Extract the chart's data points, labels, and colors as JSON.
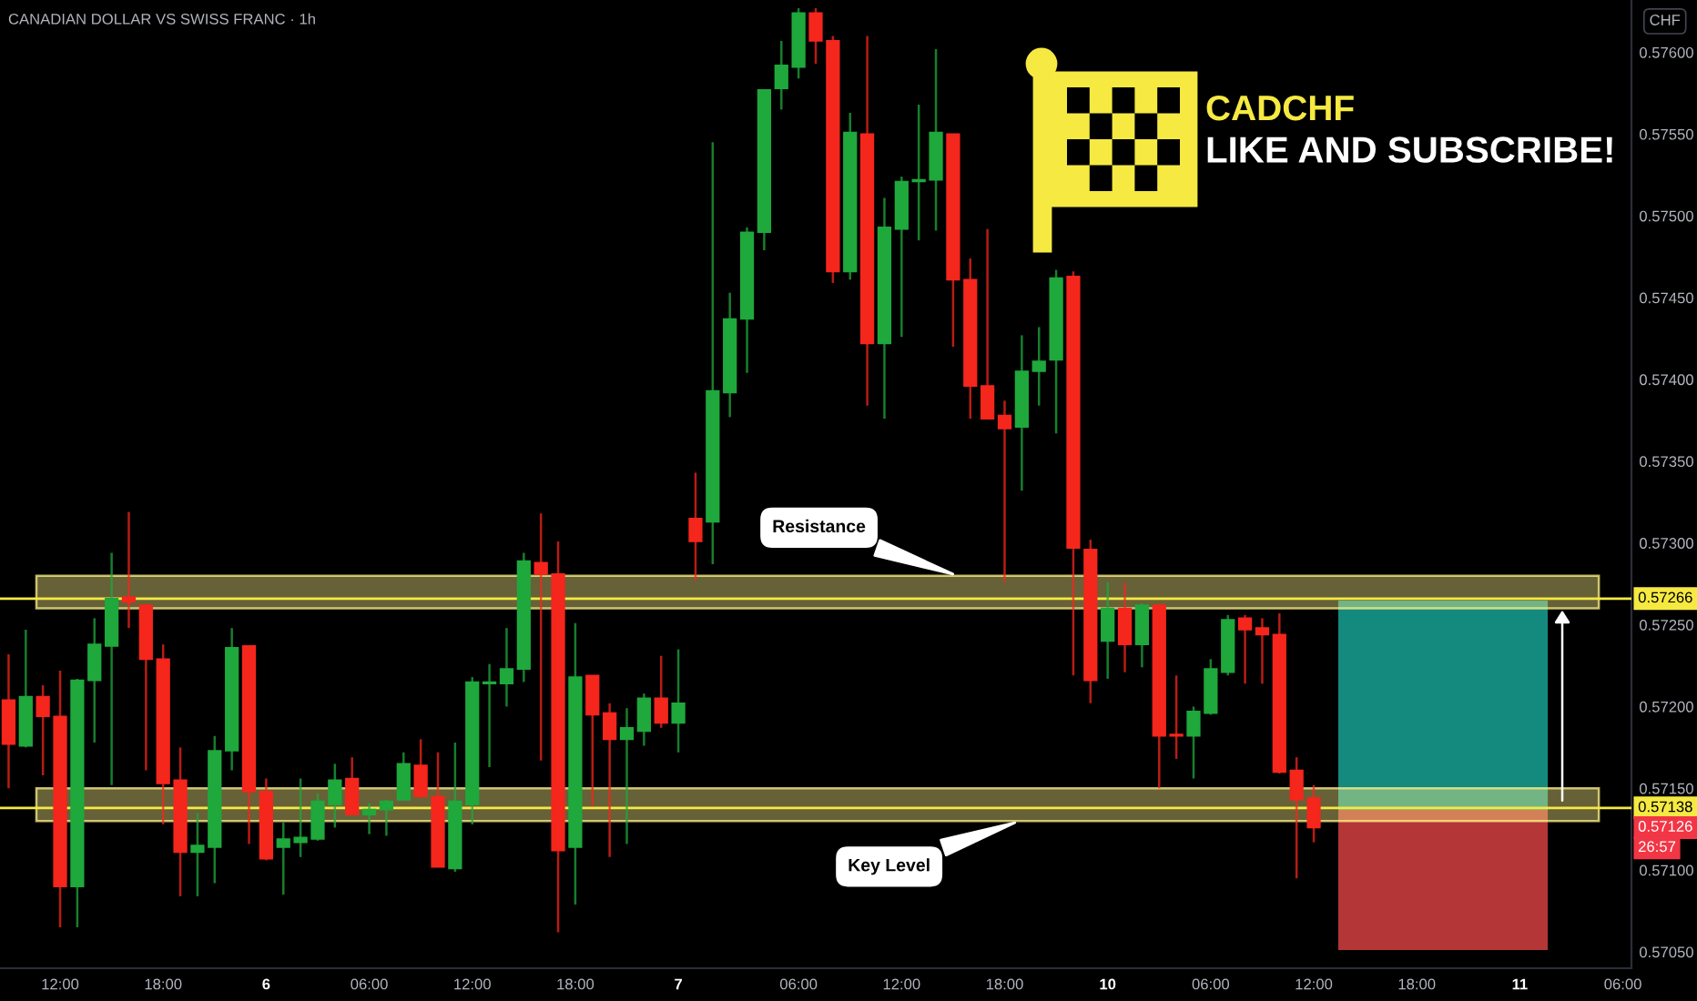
{
  "chart_data": {
    "type": "candlestick",
    "title": "CANADIAN DOLLAR VS SWISS FRANC · 1h",
    "ylabel": "CHF",
    "categories": [
      null,
      null,
      null,
      "12:00",
      null,
      null,
      null,
      null,
      null,
      "18:00",
      null,
      null,
      null,
      null,
      null,
      "6",
      null,
      null,
      null,
      null,
      null,
      "06:00",
      null,
      null,
      null,
      null,
      null,
      "12:00",
      null,
      null,
      null,
      null,
      null,
      "18:00",
      null,
      null,
      null,
      null,
      null,
      "7",
      null,
      null,
      null,
      null,
      null,
      null,
      "06:00",
      null,
      null,
      null,
      null,
      null,
      "12:00",
      null,
      null,
      null,
      null,
      null,
      "18:00",
      null,
      null,
      null,
      null,
      null,
      "10",
      null,
      null,
      null,
      null,
      null,
      "06:00",
      null,
      null,
      null,
      null,
      null,
      "12:00",
      null,
      null,
      null,
      null,
      null,
      "18:00",
      null,
      null,
      null,
      null,
      null,
      "11",
      null,
      null,
      null,
      null,
      null,
      "06:00"
    ],
    "ohlc": [
      [
        0.57204,
        0.57232,
        0.5715,
        0.57177
      ],
      [
        0.57176,
        0.57247,
        0.57175,
        0.57206
      ],
      [
        0.57206,
        0.57213,
        0.57158,
        0.57194
      ],
      [
        0.57194,
        0.57222,
        0.57065,
        0.5709
      ],
      [
        0.5709,
        0.57217,
        0.57065,
        0.57216
      ],
      [
        0.57216,
        0.57254,
        0.57178,
        0.57238
      ],
      [
        0.57237,
        0.57294,
        0.57152,
        0.57266
      ],
      [
        0.57267,
        0.57319,
        0.57248,
        0.57264
      ],
      [
        0.57262,
        0.57263,
        0.57161,
        0.57229
      ],
      [
        0.57229,
        0.57238,
        0.57128,
        0.57153
      ],
      [
        0.57155,
        0.57175,
        0.57084,
        0.57111
      ],
      [
        0.57111,
        0.57135,
        0.57084,
        0.57115
      ],
      [
        0.57114,
        0.57182,
        0.57092,
        0.57173
      ],
      [
        0.57173,
        0.57248,
        0.57161,
        0.57236
      ],
      [
        0.57237,
        0.57237,
        0.57116,
        0.57148
      ],
      [
        0.57148,
        0.57156,
        0.57106,
        0.57107
      ],
      [
        0.57114,
        0.57129,
        0.57085,
        0.57119
      ],
      [
        0.57117,
        0.57156,
        0.57108,
        0.5712
      ],
      [
        0.57119,
        0.57147,
        0.57118,
        0.57142
      ],
      [
        0.5714,
        0.57165,
        0.57126,
        0.57155
      ],
      [
        0.57156,
        0.57169,
        0.57134,
        0.57134
      ],
      [
        0.57134,
        0.57141,
        0.57122,
        0.57137
      ],
      [
        0.57137,
        0.57143,
        0.57121,
        0.57142
      ],
      [
        0.57143,
        0.57172,
        0.57143,
        0.57165
      ],
      [
        0.57164,
        0.5718,
        0.57144,
        0.57145
      ],
      [
        0.57145,
        0.57172,
        0.57102,
        0.57102
      ],
      [
        0.57101,
        0.57178,
        0.57099,
        0.57142
      ],
      [
        0.5714,
        0.57218,
        0.57128,
        0.57215
      ],
      [
        0.57214,
        0.57226,
        0.57163,
        0.57215
      ],
      [
        0.57214,
        0.57248,
        0.572,
        0.57223
      ],
      [
        0.57223,
        0.57294,
        0.57215,
        0.57289
      ],
      [
        0.57288,
        0.57318,
        0.57167,
        0.57281
      ],
      [
        0.57281,
        0.57301,
        0.57062,
        0.57112
      ],
      [
        0.57114,
        0.57251,
        0.57079,
        0.57218
      ],
      [
        0.57219,
        0.57219,
        0.57139,
        0.57195
      ],
      [
        0.57196,
        0.57202,
        0.57108,
        0.5718
      ],
      [
        0.5718,
        0.57199,
        0.57116,
        0.57187
      ],
      [
        0.57185,
        0.57208,
        0.57176,
        0.57205
      ],
      [
        0.57205,
        0.57231,
        0.57187,
        0.5719
      ],
      [
        0.5719,
        0.57235,
        0.57172,
        0.57202
      ],
      [
        0.57315,
        0.57343,
        0.57277,
        0.57301
      ],
      [
        0.57313,
        0.57545,
        0.57287,
        0.57393
      ],
      [
        0.57392,
        0.57453,
        0.57377,
        0.57437
      ],
      [
        0.57437,
        0.57493,
        0.57404,
        0.5749
      ],
      [
        0.5749,
        0.57577,
        0.57479,
        0.57577
      ],
      [
        0.57578,
        0.57607,
        0.57565,
        0.57592
      ],
      [
        0.57591,
        0.57627,
        0.57584,
        0.57624
      ],
      [
        0.57624,
        0.57627,
        0.57593,
        0.57607
      ],
      [
        0.57607,
        0.5761,
        0.57459,
        0.57466
      ],
      [
        0.57466,
        0.57563,
        0.57461,
        0.57551
      ],
      [
        0.5755,
        0.5761,
        0.57384,
        0.57422
      ],
      [
        0.57422,
        0.57511,
        0.57376,
        0.57493
      ],
      [
        0.57492,
        0.57524,
        0.57426,
        0.57521
      ],
      [
        0.57521,
        0.57568,
        0.57485,
        0.57522
      ],
      [
        0.57522,
        0.57602,
        0.57491,
        0.57551
      ],
      [
        0.5755,
        0.5755,
        0.5742,
        0.57461
      ],
      [
        0.57461,
        0.57474,
        0.57376,
        0.57396
      ],
      [
        0.57396,
        0.57492,
        0.57376,
        0.57376
      ],
      [
        0.57378,
        0.57387,
        0.57276,
        0.5737
      ],
      [
        0.57371,
        0.57427,
        0.57332,
        0.57405
      ],
      [
        0.57405,
        0.57432,
        0.57384,
        0.57411
      ],
      [
        0.57412,
        0.57467,
        0.57367,
        0.57462
      ],
      [
        0.57463,
        0.57466,
        0.57219,
        0.57297
      ],
      [
        0.57296,
        0.57302,
        0.57202,
        0.57216
      ],
      [
        0.5724,
        0.57276,
        0.57217,
        0.5726
      ],
      [
        0.5726,
        0.57276,
        0.57221,
        0.57238
      ],
      [
        0.57238,
        0.57263,
        0.57224,
        0.57262
      ],
      [
        0.57262,
        0.57263,
        0.5715,
        0.57182
      ],
      [
        0.57183,
        0.57219,
        0.57168,
        0.57182
      ],
      [
        0.57182,
        0.572,
        0.57156,
        0.57197
      ],
      [
        0.57196,
        0.57229,
        0.57195,
        0.57223
      ],
      [
        0.57221,
        0.57256,
        0.57219,
        0.57253
      ],
      [
        0.57254,
        0.57256,
        0.57214,
        0.57247
      ],
      [
        0.57248,
        0.57254,
        0.57214,
        0.57244
      ],
      [
        0.57244,
        0.57257,
        0.57159,
        0.5716
      ],
      [
        0.57161,
        0.57169,
        0.57095,
        0.57143
      ],
      [
        0.57144,
        0.57152,
        0.57117,
        0.57126
      ],
      null,
      null,
      null,
      null,
      null,
      null,
      null,
      null,
      null,
      null,
      null,
      null,
      null,
      null,
      null,
      null,
      null,
      null
    ],
    "colors": [
      "#f5261c",
      "#1fa83c",
      "#f5261c",
      "#f5261c",
      "#1fa83c",
      "#1fa83c",
      "#1fa83c",
      "#f5261c",
      "#f5261c",
      "#f5261c",
      "#f5261c",
      "#1fa83c",
      "#1fa83c",
      "#1fa83c",
      "#f5261c",
      "#f5261c",
      "#1fa83c",
      "#1fa83c",
      "#1fa83c",
      "#1fa83c",
      "#f5261c",
      "#1fa83c",
      "#1fa83c",
      "#1fa83c",
      "#f5261c",
      "#f5261c",
      "#1fa83c",
      "#1fa83c",
      "#1fa83c",
      "#1fa83c",
      "#1fa83c",
      "#f5261c",
      "#f5261c",
      "#1fa83c",
      "#f5261c",
      "#f5261c",
      "#1fa83c",
      "#1fa83c",
      "#f5261c",
      "#1fa83c",
      "#f5261c",
      "#1fa83c",
      "#1fa83c",
      "#1fa83c",
      "#1fa83c",
      "#1fa83c",
      "#1fa83c",
      "#f5261c",
      "#f5261c",
      "#1fa83c",
      "#f5261c",
      "#1fa83c",
      "#1fa83c",
      "#1fa83c",
      "#1fa83c",
      "#f5261c",
      "#f5261c",
      "#f5261c",
      "#f5261c",
      "#1fa83c",
      "#1fa83c",
      "#1fa83c",
      "#f5261c",
      "#f5261c",
      "#1fa83c",
      "#f5261c",
      "#1fa83c",
      "#f5261c",
      "#f5261c",
      "#1fa83c",
      "#1fa83c",
      "#1fa83c",
      "#f5261c",
      "#f5261c",
      "#f5261c",
      "#f5261c",
      "#f5261c",
      null,
      null,
      null,
      null,
      null,
      null,
      null,
      null,
      null,
      null,
      null,
      null,
      null,
      null,
      null,
      null,
      null,
      null
    ],
    "ylim": [
      0.5704,
      0.57632
    ],
    "yticks": [
      {
        "value": 0.5705,
        "label": "0.57050"
      },
      {
        "value": 0.571,
        "label": "0.57100"
      },
      {
        "value": 0.5715,
        "label": "0.57150"
      },
      {
        "value": 0.572,
        "label": "0.57200"
      },
      {
        "value": 0.5725,
        "label": "0.57250"
      },
      {
        "value": 0.573,
        "label": "0.57300"
      },
      {
        "value": 0.5735,
        "label": "0.57350"
      },
      {
        "value": 0.574,
        "label": "0.57400"
      },
      {
        "value": 0.5745,
        "label": "0.57450"
      },
      {
        "value": 0.575,
        "label": "0.57500"
      },
      {
        "value": 0.5755,
        "label": "0.57550"
      },
      {
        "value": 0.576,
        "label": "0.57600"
      }
    ],
    "ref_lines": [
      {
        "axis": "y",
        "value": 0.57266,
        "label": "0.57266",
        "color": "#f5e942"
      },
      {
        "axis": "y",
        "value": 0.57138,
        "label": "0.57138",
        "color": "#f5e942"
      }
    ],
    "bands": [
      {
        "axis": "y",
        "from": 0.5726,
        "to": 0.5728,
        "label": "Resistance",
        "color": "#fff38a"
      },
      {
        "axis": "y",
        "from": 0.5713,
        "to": 0.5715,
        "label": "Key Level",
        "color": "#fff38a"
      }
    ],
    "annotations": [
      "CADCHF",
      "LIKE AND SUBSCRIBE!",
      {
        "text": "0.57126",
        "y": 0.57126
      },
      "26:57"
    ]
  }
}
